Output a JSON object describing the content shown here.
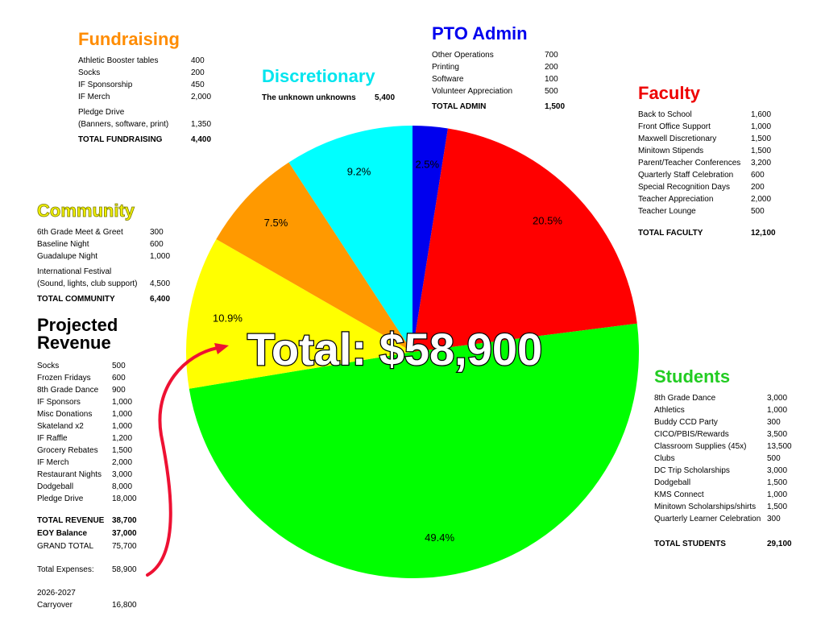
{
  "chart_data": {
    "type": "pie",
    "title": "",
    "slices": [
      {
        "value": 2.5,
        "label": "2.5%",
        "color": "#0000ee"
      },
      {
        "value": 20.5,
        "label": "20.5%",
        "color": "#ff0000"
      },
      {
        "value": 49.4,
        "label": "49.4%",
        "color": "#00ff00"
      },
      {
        "value": 10.9,
        "label": "10.9%",
        "color": "#ffff00"
      },
      {
        "value": 7.5,
        "label": "7.5%",
        "color": "#ff9900"
      },
      {
        "value": 9.2,
        "label": "9.2%",
        "color": "#00ffff"
      }
    ],
    "center_text": "Total: $58,900"
  },
  "fundraising": {
    "title": "Fundraising",
    "color": "#ff8c00",
    "items": [
      {
        "label": "Athletic Booster tables",
        "value": "400"
      },
      {
        "label": "Socks",
        "value": "200"
      },
      {
        "label": "IF Sponsorship",
        "value": "450"
      },
      {
        "label": "IF Merch",
        "value": "2,000"
      },
      {
        "label": "Pledge Drive\n(Banners, software, print)",
        "value": "1,350"
      }
    ],
    "total_label": "TOTAL FUNDRAISING",
    "total_value": "4,400"
  },
  "discretionary": {
    "title": "Discretionary",
    "color": "#00e5ee",
    "line_label": "The unknown unknowns",
    "line_value": "5,400"
  },
  "pto_admin": {
    "title": "PTO Admin",
    "color": "#0000ee",
    "items": [
      {
        "label": "Other Operations",
        "value": "700"
      },
      {
        "label": "Printing",
        "value": "200"
      },
      {
        "label": "Software",
        "value": "100"
      },
      {
        "label": "Volunteer Appreciation",
        "value": "500"
      }
    ],
    "total_label": "TOTAL ADMIN",
    "total_value": "1,500"
  },
  "faculty": {
    "title": "Faculty",
    "color": "#ee0000",
    "items": [
      {
        "label": "Back to School",
        "value": "1,600"
      },
      {
        "label": "Front Office Support",
        "value": "1,000"
      },
      {
        "label": "Maxwell Discretionary",
        "value": "1,500"
      },
      {
        "label": "Minitown Stipends",
        "value": "1,500"
      },
      {
        "label": "Parent/Teacher Conferences",
        "value": "3,200"
      },
      {
        "label": "Quarterly Staff Celebration",
        "value": "600"
      },
      {
        "label": "Special Recognition Days",
        "value": "200"
      },
      {
        "label": "Teacher Appreciation",
        "value": "2,000"
      },
      {
        "label": "Teacher Lounge",
        "value": "500"
      }
    ],
    "total_label": "TOTAL FACULTY",
    "total_value": "12,100"
  },
  "community": {
    "title": "Community",
    "color": "#f2f200",
    "items": [
      {
        "label": "6th Grade Meet & Greet",
        "value": "300"
      },
      {
        "label": "Baseline Night",
        "value": "600"
      },
      {
        "label": "Guadalupe Night",
        "value": "1,000"
      },
      {
        "label": "International Festival\n(Sound, lights, club support)",
        "value": "4,500"
      }
    ],
    "total_label": "TOTAL COMMUNITY",
    "total_value": "6,400"
  },
  "revenue": {
    "title": "Projected\nRevenue",
    "items": [
      {
        "label": "Socks",
        "value": "500"
      },
      {
        "label": "Frozen Fridays",
        "value": "600"
      },
      {
        "label": "8th Grade Dance",
        "value": "900"
      },
      {
        "label": "IF Sponsors",
        "value": "1,000"
      },
      {
        "label": "Misc Donations",
        "value": "1,000"
      },
      {
        "label": "Skateland x2",
        "value": "1,000"
      },
      {
        "label": "IF Raffle",
        "value": "1,200"
      },
      {
        "label": "Grocery Rebates",
        "value": "1,500"
      },
      {
        "label": "IF Merch",
        "value": "2,000"
      },
      {
        "label": "Restaurant Nights",
        "value": "3,000"
      },
      {
        "label": "Dodgeball",
        "value": "8,000"
      },
      {
        "label": "Pledge Drive",
        "value": "18,000"
      }
    ],
    "total_revenue_label": "TOTAL REVENUE",
    "total_revenue_value": "38,700",
    "eoy_label": "EOY Balance",
    "eoy_value": "37,000",
    "grand_label": "GRAND TOTAL",
    "grand_value": "75,700",
    "expenses_label": "Total Expenses:",
    "expenses_value": "58,900",
    "carry_label": "2026-2027\nCarryover",
    "carry_value": "16,800"
  },
  "students": {
    "title": "Students",
    "color": "#22cc22",
    "items": [
      {
        "label": "8th Grade Dance",
        "value": "3,000"
      },
      {
        "label": "Athletics",
        "value": "1,000"
      },
      {
        "label": "Buddy CCD Party",
        "value": "300"
      },
      {
        "label": "CICO/PBIS/Rewards",
        "value": "3,500"
      },
      {
        "label": "Classroom Supplies (45x)",
        "value": "13,500"
      },
      {
        "label": "Clubs",
        "value": "500"
      },
      {
        "label": "DC Trip Scholarships",
        "value": "3,000"
      },
      {
        "label": "Dodgeball",
        "value": "1,500"
      },
      {
        "label": "KMS Connect",
        "value": "1,000"
      },
      {
        "label": "Minitown Scholarships/shirts",
        "value": "1,500"
      },
      {
        "label": "Quarterly Learner Celebration",
        "value": "300"
      }
    ],
    "total_label": "TOTAL STUDENTS",
    "total_value": "29,100"
  }
}
